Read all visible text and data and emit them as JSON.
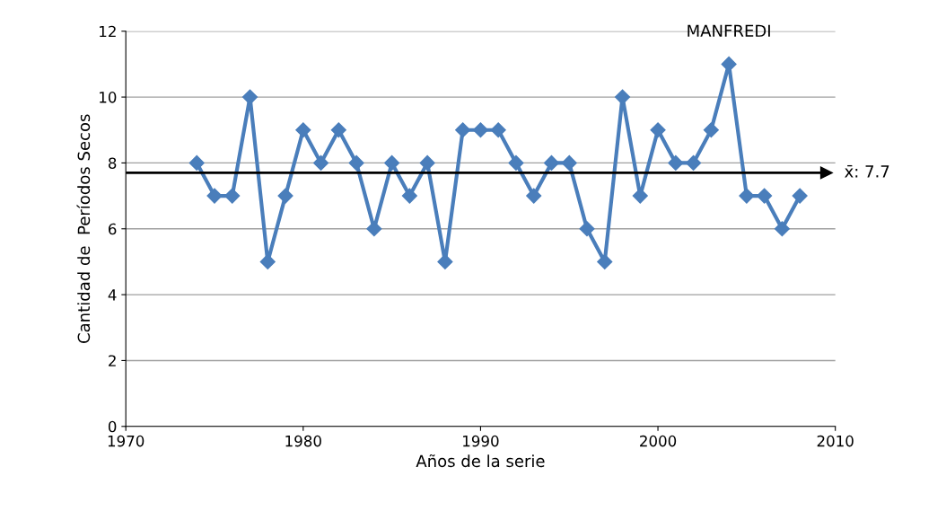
{
  "chart_data": {
    "type": "line",
    "xlabel": "Años de la serie",
    "ylabel": "Cantidad de  Períodos Secos",
    "x": [
      1974,
      1975,
      1976,
      1977,
      1978,
      1979,
      1980,
      1981,
      1982,
      1983,
      1984,
      1985,
      1986,
      1987,
      1988,
      1989,
      1990,
      1991,
      1992,
      1993,
      1994,
      1995,
      1996,
      1997,
      1998,
      1999,
      2000,
      2001,
      2002,
      2003,
      2004,
      2005,
      2006,
      2007,
      2008
    ],
    "series": [
      {
        "color": "#4a7ebb",
        "values": [
          8,
          7,
          7,
          10,
          5,
          7,
          9,
          8,
          9,
          8,
          6,
          8,
          7,
          8,
          5,
          9,
          9,
          9,
          8,
          7,
          8,
          8,
          6,
          5,
          10,
          7,
          9,
          8,
          8,
          9,
          11,
          7,
          7,
          6,
          7
        ]
      }
    ],
    "xlim": [
      1970,
      2010
    ],
    "xticks": [
      1970,
      1980,
      1990,
      2000,
      2010
    ],
    "ylim": [
      0,
      12
    ],
    "yticks": [
      0,
      2,
      4,
      6,
      8,
      10,
      12
    ],
    "grid": "y",
    "marker": "diamond",
    "line_style": "solid",
    "ref_lines": [
      {
        "axis": "y",
        "value": 7.7,
        "label": "x̄: 7.7",
        "color": "#000000"
      }
    ],
    "annotations": [
      {
        "text": "MANFREDI",
        "x": 2004,
        "y": 11
      }
    ]
  }
}
